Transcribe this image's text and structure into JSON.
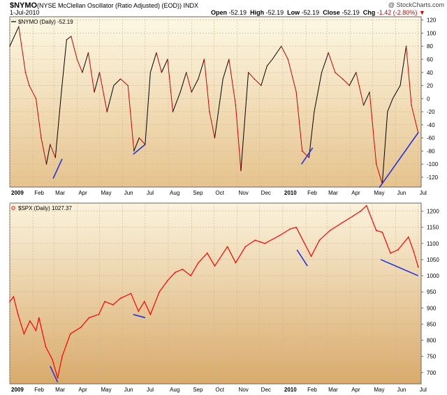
{
  "header": {
    "symbol": "$NYMO",
    "description": "(NYSE McClellan Oscillator (Ratio Adjusted) (EOD))  INDX",
    "date": "1-Jul-2010",
    "brand": "@ StockCharts.com",
    "open_label": "Open",
    "open": "-52.19",
    "high_label": "High",
    "high": "-52.19",
    "low_label": "Low",
    "low": "-52.19",
    "close_label": "Close",
    "close": "-52.19",
    "chg_label": "Chg",
    "chg": "-1.42 (-2.80%)"
  },
  "chart_data": [
    {
      "type": "line",
      "legend": "$NYMO (Daily) -52.19",
      "ylim": [
        -135,
        125
      ],
      "yticks": [
        120,
        100,
        80,
        60,
        40,
        20,
        0,
        -20,
        -40,
        -60,
        -80,
        -100,
        -120
      ],
      "x_tick_labels": [
        "2009",
        "Feb",
        "Mar",
        "Apr",
        "May",
        "Jun",
        "Jul",
        "Aug",
        "Sep",
        "Oct",
        "Nov",
        "Dec",
        "2010",
        "Feb",
        "Mar",
        "Apr",
        "May",
        "Jun",
        "Jul"
      ],
      "colors": {
        "rising": "#000000",
        "falling": "#cc0000",
        "annotation": "#2233dd"
      },
      "series": [
        {
          "x": [
            "2009-01-01",
            "2009-01-13",
            "2009-01-22",
            "2009-01-27",
            "2009-02-05",
            "2009-02-12",
            "2009-02-19",
            "2009-02-24",
            "2009-03-03",
            "2009-03-11",
            "2009-03-18",
            "2009-03-24",
            "2009-04-01",
            "2009-04-08",
            "2009-04-16",
            "2009-04-24",
            "2009-05-01",
            "2009-05-11",
            "2009-05-20",
            "2009-05-29",
            "2009-06-08",
            "2009-06-16",
            "2009-06-23",
            "2009-07-01",
            "2009-07-08",
            "2009-07-16",
            "2009-07-23",
            "2009-07-31",
            "2009-08-07",
            "2009-08-17",
            "2009-08-25",
            "2009-09-01",
            "2009-09-10",
            "2009-09-18",
            "2009-09-25",
            "2009-10-02",
            "2009-10-13",
            "2009-10-21",
            "2009-10-30",
            "2009-11-06",
            "2009-11-16",
            "2009-11-24",
            "2009-12-03",
            "2009-12-11",
            "2009-12-18",
            "2009-12-30",
            "2010-01-08",
            "2010-01-19",
            "2010-01-27",
            "2010-02-05",
            "2010-02-12",
            "2010-02-22",
            "2010-03-03",
            "2010-03-12",
            "2010-03-22",
            "2010-03-31",
            "2010-04-09",
            "2010-04-19",
            "2010-04-27",
            "2010-05-06",
            "2010-05-14",
            "2010-05-21",
            "2010-05-28",
            "2010-06-07",
            "2010-06-15",
            "2010-06-22",
            "2010-07-01"
          ],
          "values": [
            80,
            110,
            40,
            20,
            0,
            -60,
            -100,
            -70,
            -90,
            10,
            90,
            95,
            60,
            40,
            70,
            10,
            40,
            -20,
            20,
            30,
            20,
            -80,
            -60,
            -70,
            40,
            70,
            40,
            60,
            -20,
            10,
            40,
            10,
            30,
            60,
            -20,
            -60,
            30,
            60,
            -10,
            -110,
            40,
            30,
            20,
            50,
            60,
            80,
            60,
            10,
            -80,
            -90,
            -20,
            40,
            70,
            40,
            30,
            20,
            40,
            -10,
            10,
            -100,
            -130,
            -20,
            0,
            20,
            80,
            -10,
            -52
          ]
        }
      ],
      "annotations": [
        {
          "x": [
            "2009-02-28",
            "2009-03-12"
          ],
          "y": [
            -122,
            -92
          ]
        },
        {
          "x": [
            "2009-06-15",
            "2009-07-01"
          ],
          "y": [
            -85,
            -70
          ]
        },
        {
          "x": [
            "2010-01-26",
            "2010-02-10"
          ],
          "y": [
            -100,
            -75
          ]
        },
        {
          "x": [
            "2010-05-10",
            "2010-07-01"
          ],
          "y": [
            -136,
            -52
          ]
        }
      ]
    },
    {
      "type": "line",
      "legend": "$SPX (Daily) 1027.37",
      "ylim": [
        665,
        1225
      ],
      "yticks": [
        1200,
        1150,
        1100,
        1050,
        1000,
        950,
        900,
        850,
        800,
        750,
        700
      ],
      "x_tick_labels": [
        "2009",
        "Feb",
        "Mar",
        "Apr",
        "May",
        "Jun",
        "Jul",
        "Aug",
        "Sep",
        "Oct",
        "Nov",
        "Dec",
        "2010",
        "Feb",
        "Mar",
        "Apr",
        "May",
        "Jun",
        "Jul"
      ],
      "colors": {
        "line": "#ff0000",
        "annotation": "#2233dd"
      },
      "series": [
        {
          "x": [
            "2009-01-01",
            "2009-01-06",
            "2009-01-12",
            "2009-01-20",
            "2009-01-28",
            "2009-02-05",
            "2009-02-09",
            "2009-02-18",
            "2009-02-27",
            "2009-03-06",
            "2009-03-12",
            "2009-03-23",
            "2009-04-06",
            "2009-04-17",
            "2009-04-30",
            "2009-05-08",
            "2009-05-19",
            "2009-05-29",
            "2009-06-12",
            "2009-06-22",
            "2009-06-30",
            "2009-07-08",
            "2009-07-20",
            "2009-07-31",
            "2009-08-10",
            "2009-08-20",
            "2009-08-31",
            "2009-09-10",
            "2009-09-22",
            "2009-10-02",
            "2009-10-19",
            "2009-10-30",
            "2009-11-12",
            "2009-11-25",
            "2009-12-08",
            "2009-12-28",
            "2010-01-11",
            "2010-01-19",
            "2010-02-08",
            "2010-02-19",
            "2010-03-05",
            "2010-03-22",
            "2010-04-05",
            "2010-04-15",
            "2010-04-23",
            "2010-05-06",
            "2010-05-14",
            "2010-05-25",
            "2010-06-04",
            "2010-06-18",
            "2010-06-25",
            "2010-07-01"
          ],
          "values": [
            920,
            935,
            880,
            820,
            860,
            830,
            870,
            780,
            740,
            683,
            750,
            820,
            840,
            870,
            880,
            920,
            910,
            930,
            945,
            890,
            920,
            880,
            950,
            985,
            1010,
            1020,
            1000,
            1040,
            1070,
            1030,
            1090,
            1040,
            1090,
            1110,
            1100,
            1125,
            1145,
            1150,
            1060,
            1110,
            1140,
            1165,
            1185,
            1200,
            1217,
            1140,
            1135,
            1070,
            1080,
            1120,
            1075,
            1027
          ]
        }
      ],
      "annotations": [
        {
          "x": [
            "2009-02-24",
            "2009-03-06"
          ],
          "y": [
            720,
            670
          ]
        },
        {
          "x": [
            "2009-06-15",
            "2009-07-01"
          ],
          "y": [
            880,
            870
          ]
        },
        {
          "x": [
            "2010-01-20",
            "2010-02-03"
          ],
          "y": [
            1080,
            1030
          ]
        },
        {
          "x": [
            "2010-05-12",
            "2010-07-01"
          ],
          "y": [
            1050,
            1000
          ]
        }
      ]
    }
  ]
}
